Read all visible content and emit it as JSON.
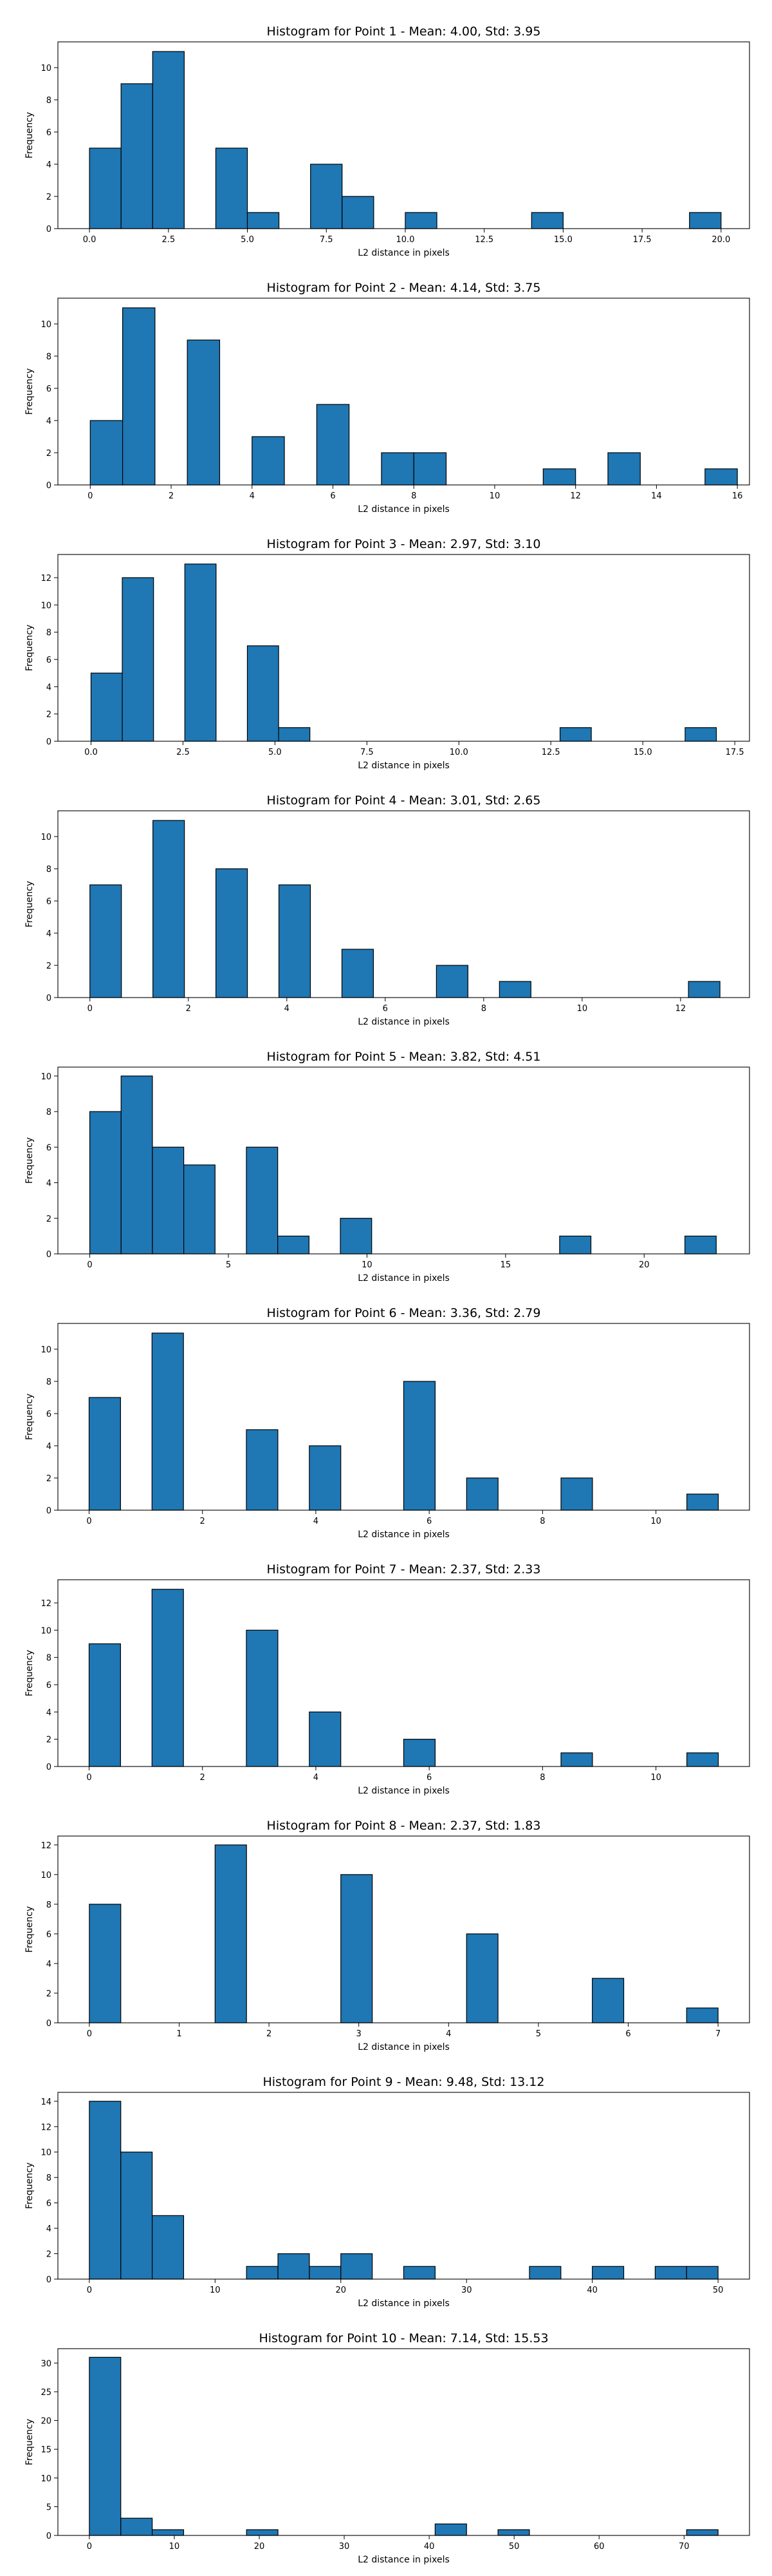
{
  "chart_data": [
    {
      "type": "bar",
      "title": "Histogram for Point 1 - Mean: 4.00, Std: 3.95",
      "xlabel": "L2 distance in pixels",
      "ylabel": "Frequency",
      "xlim": [
        -1.0,
        20.9
      ],
      "ylim": [
        0,
        11.6
      ],
      "xticks": [
        0.0,
        2.5,
        5.0,
        7.5,
        10.0,
        12.5,
        15.0,
        17.5,
        20.0
      ],
      "xtick_labels": [
        "0.0",
        "2.5",
        "5.0",
        "7.5",
        "10.0",
        "12.5",
        "15.0",
        "17.5",
        "20.0"
      ],
      "yticks": [
        0,
        2,
        4,
        6,
        8,
        10
      ],
      "ytick_labels": [
        "0",
        "2",
        "4",
        "6",
        "8",
        "10"
      ],
      "bins": [
        {
          "x0": 0.0,
          "x1": 1.0,
          "count": 5
        },
        {
          "x0": 1.0,
          "x1": 2.0,
          "count": 9
        },
        {
          "x0": 2.0,
          "x1": 3.0,
          "count": 11
        },
        {
          "x0": 4.0,
          "x1": 5.0,
          "count": 5
        },
        {
          "x0": 5.0,
          "x1": 6.0,
          "count": 1
        },
        {
          "x0": 7.0,
          "x1": 8.0,
          "count": 4
        },
        {
          "x0": 8.0,
          "x1": 9.0,
          "count": 2
        },
        {
          "x0": 10.0,
          "x1": 11.0,
          "count": 1
        },
        {
          "x0": 14.0,
          "x1": 15.0,
          "count": 1
        },
        {
          "x0": 19.0,
          "x1": 20.0,
          "count": 1
        }
      ]
    },
    {
      "type": "bar",
      "title": "Histogram for Point 2 - Mean: 4.14, Std: 3.75",
      "xlabel": "L2 distance in pixels",
      "ylabel": "Frequency",
      "xlim": [
        -0.8,
        16.3
      ],
      "ylim": [
        0,
        11.6
      ],
      "xticks": [
        0,
        2,
        4,
        6,
        8,
        10,
        12,
        14,
        16
      ],
      "xtick_labels": [
        "0",
        "2",
        "4",
        "6",
        "8",
        "10",
        "12",
        "14",
        "16"
      ],
      "yticks": [
        0,
        2,
        4,
        6,
        8,
        10
      ],
      "ytick_labels": [
        "0",
        "2",
        "4",
        "6",
        "8",
        "10"
      ],
      "bins": [
        {
          "x0": 0.0,
          "x1": 0.8,
          "count": 4
        },
        {
          "x0": 0.8,
          "x1": 1.6,
          "count": 11
        },
        {
          "x0": 2.4,
          "x1": 3.2,
          "count": 9
        },
        {
          "x0": 4.0,
          "x1": 4.8,
          "count": 3
        },
        {
          "x0": 5.6,
          "x1": 6.4,
          "count": 5
        },
        {
          "x0": 7.2,
          "x1": 8.0,
          "count": 2
        },
        {
          "x0": 8.0,
          "x1": 8.8,
          "count": 2
        },
        {
          "x0": 11.2,
          "x1": 12.0,
          "count": 1
        },
        {
          "x0": 12.8,
          "x1": 13.6,
          "count": 2
        },
        {
          "x0": 15.2,
          "x1": 16.0,
          "count": 1
        }
      ]
    },
    {
      "type": "bar",
      "title": "Histogram for Point 3 - Mean: 2.97, Std: 3.10",
      "xlabel": "L2 distance in pixels",
      "ylabel": "Frequency",
      "xlim": [
        -0.9,
        17.9
      ],
      "ylim": [
        0,
        13.7
      ],
      "xticks": [
        0.0,
        2.5,
        5.0,
        7.5,
        10.0,
        12.5,
        15.0,
        17.5
      ],
      "xtick_labels": [
        "0.0",
        "2.5",
        "5.0",
        "7.5",
        "10.0",
        "12.5",
        "15.0",
        "17.5"
      ],
      "yticks": [
        0,
        2,
        4,
        6,
        8,
        10,
        12
      ],
      "ytick_labels": [
        "0",
        "2",
        "4",
        "6",
        "8",
        "10",
        "12"
      ],
      "bins": [
        {
          "x0": 0.0,
          "x1": 0.85,
          "count": 5
        },
        {
          "x0": 0.85,
          "x1": 1.7,
          "count": 12
        },
        {
          "x0": 2.55,
          "x1": 3.4,
          "count": 13
        },
        {
          "x0": 4.25,
          "x1": 5.1,
          "count": 7
        },
        {
          "x0": 5.1,
          "x1": 5.95,
          "count": 1
        },
        {
          "x0": 12.75,
          "x1": 13.6,
          "count": 1
        },
        {
          "x0": 16.15,
          "x1": 17.0,
          "count": 1
        }
      ]
    },
    {
      "type": "bar",
      "title": "Histogram for Point 4 - Mean: 3.01, Std: 2.65",
      "xlabel": "L2 distance in pixels",
      "ylabel": "Frequency",
      "xlim": [
        -0.65,
        13.4
      ],
      "ylim": [
        0,
        11.6
      ],
      "xticks": [
        0,
        2,
        4,
        6,
        8,
        10,
        12
      ],
      "xtick_labels": [
        "0",
        "2",
        "4",
        "6",
        "8",
        "10",
        "12"
      ],
      "yticks": [
        0,
        2,
        4,
        6,
        8,
        10
      ],
      "ytick_labels": [
        "0",
        "2",
        "4",
        "6",
        "8",
        "10"
      ],
      "bins": [
        {
          "x0": 0.0,
          "x1": 0.64,
          "count": 7
        },
        {
          "x0": 1.28,
          "x1": 1.92,
          "count": 11
        },
        {
          "x0": 2.56,
          "x1": 3.2,
          "count": 8
        },
        {
          "x0": 3.84,
          "x1": 4.48,
          "count": 7
        },
        {
          "x0": 5.12,
          "x1": 5.76,
          "count": 3
        },
        {
          "x0": 7.04,
          "x1": 7.68,
          "count": 2
        },
        {
          "x0": 8.32,
          "x1": 8.96,
          "count": 1
        },
        {
          "x0": 12.16,
          "x1": 12.8,
          "count": 1
        }
      ]
    },
    {
      "type": "bar",
      "title": "Histogram for Point 5 - Mean: 3.82, Std: 4.51",
      "xlabel": "L2 distance in pixels",
      "ylabel": "Frequency",
      "xlim": [
        -1.15,
        23.8
      ],
      "ylim": [
        0,
        10.5
      ],
      "xticks": [
        0,
        5,
        10,
        15,
        20
      ],
      "xtick_labels": [
        "0",
        "5",
        "10",
        "15",
        "20"
      ],
      "yticks": [
        0,
        2,
        4,
        6,
        8,
        10
      ],
      "ytick_labels": [
        "0",
        "2",
        "4",
        "6",
        "8",
        "10"
      ],
      "bins": [
        {
          "x0": 0.0,
          "x1": 1.13,
          "count": 8
        },
        {
          "x0": 1.13,
          "x1": 2.26,
          "count": 10
        },
        {
          "x0": 2.26,
          "x1": 3.39,
          "count": 6
        },
        {
          "x0": 3.39,
          "x1": 4.52,
          "count": 5
        },
        {
          "x0": 5.65,
          "x1": 6.78,
          "count": 6
        },
        {
          "x0": 6.78,
          "x1": 7.91,
          "count": 1
        },
        {
          "x0": 9.04,
          "x1": 10.17,
          "count": 2
        },
        {
          "x0": 16.95,
          "x1": 18.08,
          "count": 1
        },
        {
          "x0": 21.47,
          "x1": 22.6,
          "count": 1
        }
      ]
    },
    {
      "type": "bar",
      "title": "Histogram for Point 6 - Mean: 3.36, Std: 2.79",
      "xlabel": "L2 distance in pixels",
      "ylabel": "Frequency",
      "xlim": [
        -0.55,
        11.65
      ],
      "ylim": [
        0,
        11.6
      ],
      "xticks": [
        0,
        2,
        4,
        6,
        8,
        10
      ],
      "xtick_labels": [
        "0",
        "2",
        "4",
        "6",
        "8",
        "10"
      ],
      "yticks": [
        0,
        2,
        4,
        6,
        8,
        10
      ],
      "ytick_labels": [
        "0",
        "2",
        "4",
        "6",
        "8",
        "10"
      ],
      "bins": [
        {
          "x0": 0.0,
          "x1": 0.555,
          "count": 7
        },
        {
          "x0": 1.11,
          "x1": 1.665,
          "count": 11
        },
        {
          "x0": 2.775,
          "x1": 3.33,
          "count": 5
        },
        {
          "x0": 3.885,
          "x1": 4.44,
          "count": 4
        },
        {
          "x0": 5.55,
          "x1": 6.105,
          "count": 8
        },
        {
          "x0": 6.66,
          "x1": 7.215,
          "count": 2
        },
        {
          "x0": 8.325,
          "x1": 8.88,
          "count": 2
        },
        {
          "x0": 10.545,
          "x1": 11.1,
          "count": 1
        }
      ]
    },
    {
      "type": "bar",
      "title": "Histogram for Point 7 - Mean: 2.37, Std: 2.33",
      "xlabel": "L2 distance in pixels",
      "ylabel": "Frequency",
      "xlim": [
        -0.55,
        11.65
      ],
      "ylim": [
        0,
        13.7
      ],
      "xticks": [
        0,
        2,
        4,
        6,
        8,
        10
      ],
      "xtick_labels": [
        "0",
        "2",
        "4",
        "6",
        "8",
        "10"
      ],
      "yticks": [
        0,
        2,
        4,
        6,
        8,
        10,
        12
      ],
      "ytick_labels": [
        "0",
        "2",
        "4",
        "6",
        "8",
        "10",
        "12"
      ],
      "bins": [
        {
          "x0": 0.0,
          "x1": 0.555,
          "count": 9
        },
        {
          "x0": 1.11,
          "x1": 1.665,
          "count": 13
        },
        {
          "x0": 2.775,
          "x1": 3.33,
          "count": 10
        },
        {
          "x0": 3.885,
          "x1": 4.44,
          "count": 4
        },
        {
          "x0": 5.55,
          "x1": 6.105,
          "count": 2
        },
        {
          "x0": 8.325,
          "x1": 8.88,
          "count": 1
        },
        {
          "x0": 10.545,
          "x1": 11.1,
          "count": 1
        }
      ]
    },
    {
      "type": "bar",
      "title": "Histogram for Point 8 - Mean: 2.37, Std: 1.83",
      "xlabel": "L2 distance in pixels",
      "ylabel": "Frequency",
      "xlim": [
        -0.35,
        7.35
      ],
      "ylim": [
        0,
        12.6
      ],
      "xticks": [
        0,
        1,
        2,
        3,
        4,
        5,
        6,
        7
      ],
      "xtick_labels": [
        "0",
        "1",
        "2",
        "3",
        "4",
        "5",
        "6",
        "7"
      ],
      "yticks": [
        0,
        2,
        4,
        6,
        8,
        10,
        12
      ],
      "ytick_labels": [
        "0",
        "2",
        "4",
        "6",
        "8",
        "10",
        "12"
      ],
      "bins": [
        {
          "x0": 0.0,
          "x1": 0.35,
          "count": 8
        },
        {
          "x0": 1.4,
          "x1": 1.75,
          "count": 12
        },
        {
          "x0": 2.8,
          "x1": 3.15,
          "count": 10
        },
        {
          "x0": 4.2,
          "x1": 4.55,
          "count": 6
        },
        {
          "x0": 5.6,
          "x1": 5.95,
          "count": 3
        },
        {
          "x0": 6.65,
          "x1": 7.0,
          "count": 1
        }
      ]
    },
    {
      "type": "bar",
      "title": "Histogram for Point 9 - Mean: 9.48, Std: 13.12",
      "xlabel": "L2 distance in pixels",
      "ylabel": "Frequency",
      "xlim": [
        -2.5,
        52.5
      ],
      "ylim": [
        0,
        14.7
      ],
      "xticks": [
        0,
        10,
        20,
        30,
        40,
        50
      ],
      "xtick_labels": [
        "0",
        "10",
        "20",
        "30",
        "40",
        "50"
      ],
      "yticks": [
        0,
        2,
        4,
        6,
        8,
        10,
        12,
        14
      ],
      "ytick_labels": [
        "0",
        "2",
        "4",
        "6",
        "8",
        "10",
        "12",
        "14"
      ],
      "bins": [
        {
          "x0": 0.0,
          "x1": 2.5,
          "count": 14
        },
        {
          "x0": 2.5,
          "x1": 5.0,
          "count": 10
        },
        {
          "x0": 5.0,
          "x1": 7.5,
          "count": 5
        },
        {
          "x0": 12.5,
          "x1": 15.0,
          "count": 1
        },
        {
          "x0": 15.0,
          "x1": 17.5,
          "count": 2
        },
        {
          "x0": 17.5,
          "x1": 20.0,
          "count": 1
        },
        {
          "x0": 20.0,
          "x1": 22.5,
          "count": 2
        },
        {
          "x0": 25.0,
          "x1": 27.5,
          "count": 1
        },
        {
          "x0": 35.0,
          "x1": 37.5,
          "count": 1
        },
        {
          "x0": 40.0,
          "x1": 42.5,
          "count": 1
        },
        {
          "x0": 45.0,
          "x1": 47.5,
          "count": 1
        },
        {
          "x0": 47.5,
          "x1": 50.0,
          "count": 1
        }
      ]
    },
    {
      "type": "bar",
      "title": "Histogram for Point 10 - Mean: 7.14, Std: 15.53",
      "xlabel": "L2 distance in pixels",
      "ylabel": "Frequency",
      "xlim": [
        -3.7,
        77.7
      ],
      "ylim": [
        0,
        32.5
      ],
      "xticks": [
        0,
        10,
        20,
        30,
        40,
        50,
        60,
        70
      ],
      "xtick_labels": [
        "0",
        "10",
        "20",
        "30",
        "40",
        "50",
        "60",
        "70"
      ],
      "yticks": [
        0,
        5,
        10,
        15,
        20,
        25,
        30
      ],
      "ytick_labels": [
        "0",
        "5",
        "10",
        "15",
        "20",
        "25",
        "30"
      ],
      "bins": [
        {
          "x0": 0.0,
          "x1": 3.7,
          "count": 31
        },
        {
          "x0": 3.7,
          "x1": 7.4,
          "count": 3
        },
        {
          "x0": 7.4,
          "x1": 11.1,
          "count": 1
        },
        {
          "x0": 18.5,
          "x1": 22.2,
          "count": 1
        },
        {
          "x0": 40.7,
          "x1": 44.4,
          "count": 2
        },
        {
          "x0": 48.1,
          "x1": 51.8,
          "count": 1
        },
        {
          "x0": 70.3,
          "x1": 74.0,
          "count": 1
        }
      ]
    }
  ]
}
